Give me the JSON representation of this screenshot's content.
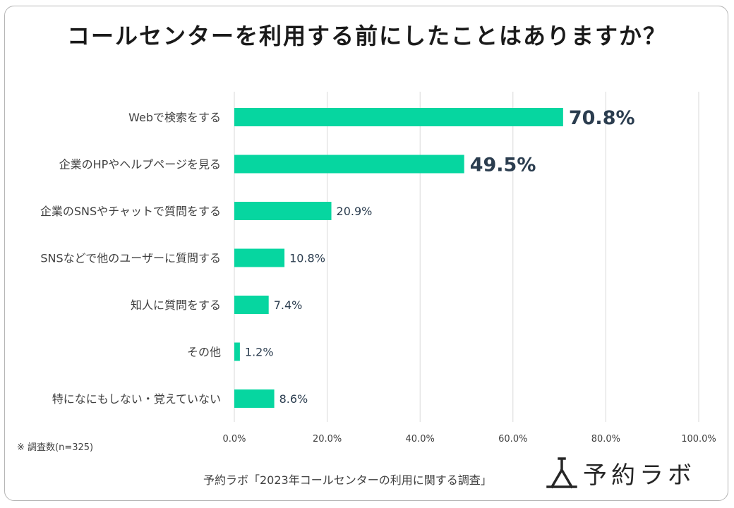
{
  "title": "コールセンターを利用する前にしたことはありますか？",
  "note": "※ 調査数(n=325)",
  "source": "予約ラボ「2023年コールセンターの利用に関する調査」",
  "logo_text": "予約ラボ",
  "colors": {
    "bar": "#06d6a0",
    "highlight_label": "#2b3d4f",
    "label": "#2b3d4f",
    "grid": "#d9d9d9"
  },
  "chart_data": {
    "type": "bar",
    "orientation": "horizontal",
    "categories": [
      "Webで検索をする",
      "企業のHPやヘルプページを見る",
      "企業のSNSやチャットで質問をする",
      "SNSなどで他のユーザーに質問する",
      "知人に質問をする",
      "その他",
      "特になにもしない・覚えていない"
    ],
    "values": [
      70.8,
      49.5,
      20.9,
      10.8,
      7.4,
      1.2,
      8.6
    ],
    "value_labels": [
      "70.8%",
      "49.5%",
      "20.9%",
      "10.8%",
      "7.4%",
      "1.2%",
      "8.6%"
    ],
    "highlighted": [
      true,
      true,
      false,
      false,
      false,
      false,
      false
    ],
    "xlim": [
      0,
      100
    ],
    "xticks": [
      "0.0%",
      "20.0%",
      "40.0%",
      "60.0%",
      "80.0%",
      "100.0%"
    ],
    "grid": true
  }
}
